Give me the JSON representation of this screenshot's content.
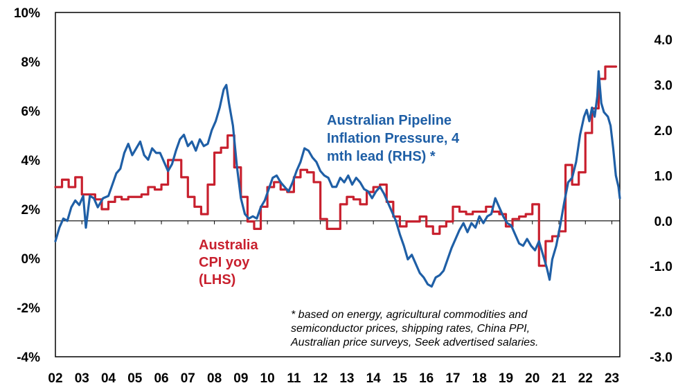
{
  "chart_data": {
    "type": "line",
    "title": "",
    "xlabel": "",
    "x_tick_labels": [
      "02",
      "03",
      "04",
      "05",
      "06",
      "07",
      "08",
      "09",
      "10",
      "11",
      "12",
      "13",
      "14",
      "15",
      "16",
      "17",
      "18",
      "19",
      "20",
      "21",
      "22",
      "23"
    ],
    "x_range": [
      2002.0,
      2023.3
    ],
    "left_axis": {
      "ylim": [
        -4,
        10
      ],
      "tick_values": [
        -4,
        -2,
        0,
        2,
        4,
        6,
        8,
        10
      ],
      "tick_labels": [
        "-4%",
        "-2%",
        "0%",
        "2%",
        "4%",
        "6%",
        "8%",
        "10%"
      ]
    },
    "right_axis": {
      "ylim": [
        -3.0,
        4.6
      ],
      "tick_values": [
        -3.0,
        -2.0,
        -1.0,
        0.0,
        1.0,
        2.0,
        3.0,
        4.0
      ],
      "tick_labels": [
        "-3.0",
        "-2.0",
        "-1.0",
        "0.0",
        "1.0",
        "2.0",
        "3.0",
        "4.0"
      ]
    },
    "series": [
      {
        "name": "Australia CPI yoy (LHS)",
        "axis": "left",
        "style": "step",
        "color": "#c8202e",
        "label_lines": [
          "Australia",
          "CPI yoy",
          "(LHS)"
        ],
        "points": [
          [
            2002.0,
            2.9
          ],
          [
            2002.25,
            3.2
          ],
          [
            2002.5,
            2.9
          ],
          [
            2002.75,
            3.3
          ],
          [
            2003.0,
            2.6
          ],
          [
            2003.25,
            2.6
          ],
          [
            2003.5,
            2.4
          ],
          [
            2003.75,
            2.0
          ],
          [
            2004.0,
            2.3
          ],
          [
            2004.25,
            2.5
          ],
          [
            2004.5,
            2.4
          ],
          [
            2004.75,
            2.5
          ],
          [
            2005.0,
            2.5
          ],
          [
            2005.25,
            2.6
          ],
          [
            2005.5,
            2.9
          ],
          [
            2005.75,
            2.8
          ],
          [
            2006.0,
            3.0
          ],
          [
            2006.25,
            4.0
          ],
          [
            2006.5,
            4.0
          ],
          [
            2006.75,
            3.3
          ],
          [
            2007.0,
            2.5
          ],
          [
            2007.25,
            2.1
          ],
          [
            2007.5,
            1.8
          ],
          [
            2007.75,
            3.0
          ],
          [
            2008.0,
            4.3
          ],
          [
            2008.25,
            4.5
          ],
          [
            2008.5,
            5.0
          ],
          [
            2008.75,
            3.7
          ],
          [
            2009.0,
            2.5
          ],
          [
            2009.25,
            1.5
          ],
          [
            2009.5,
            1.2
          ],
          [
            2009.75,
            2.1
          ],
          [
            2010.0,
            2.9
          ],
          [
            2010.25,
            3.1
          ],
          [
            2010.5,
            2.8
          ],
          [
            2010.75,
            2.7
          ],
          [
            2011.0,
            3.3
          ],
          [
            2011.25,
            3.6
          ],
          [
            2011.5,
            3.5
          ],
          [
            2011.75,
            3.1
          ],
          [
            2012.0,
            1.6
          ],
          [
            2012.25,
            1.2
          ],
          [
            2012.5,
            1.2
          ],
          [
            2012.75,
            2.2
          ],
          [
            2013.0,
            2.5
          ],
          [
            2013.25,
            2.4
          ],
          [
            2013.5,
            2.2
          ],
          [
            2013.75,
            2.7
          ],
          [
            2014.0,
            2.9
          ],
          [
            2014.25,
            3.0
          ],
          [
            2014.5,
            2.3
          ],
          [
            2014.75,
            1.7
          ],
          [
            2015.0,
            1.3
          ],
          [
            2015.25,
            1.5
          ],
          [
            2015.5,
            1.5
          ],
          [
            2015.75,
            1.7
          ],
          [
            2016.0,
            1.3
          ],
          [
            2016.25,
            1.0
          ],
          [
            2016.5,
            1.3
          ],
          [
            2016.75,
            1.5
          ],
          [
            2017.0,
            2.1
          ],
          [
            2017.25,
            1.9
          ],
          [
            2017.5,
            1.8
          ],
          [
            2017.75,
            1.9
          ],
          [
            2018.0,
            1.9
          ],
          [
            2018.25,
            2.1
          ],
          [
            2018.5,
            1.9
          ],
          [
            2018.75,
            1.8
          ],
          [
            2019.0,
            1.3
          ],
          [
            2019.25,
            1.6
          ],
          [
            2019.5,
            1.7
          ],
          [
            2019.75,
            1.8
          ],
          [
            2020.0,
            2.2
          ],
          [
            2020.25,
            -0.3
          ],
          [
            2020.5,
            0.7
          ],
          [
            2020.75,
            0.9
          ],
          [
            2021.0,
            1.1
          ],
          [
            2021.25,
            3.8
          ],
          [
            2021.5,
            3.0
          ],
          [
            2021.75,
            3.5
          ],
          [
            2022.0,
            5.1
          ],
          [
            2022.25,
            6.1
          ],
          [
            2022.5,
            7.3
          ],
          [
            2022.75,
            7.8
          ],
          [
            2023.0,
            7.8
          ]
        ]
      },
      {
        "name": "Australian Pipeline Inflation Pressure, 4 mth lead (RHS) *",
        "axis": "right",
        "style": "line",
        "color": "#1f5fa6",
        "label_lines": [
          "Australian Pipeline",
          "Inflation Pressure, 4",
          "mth lead (RHS) *"
        ],
        "points": [
          [
            2002.0,
            -0.45
          ],
          [
            2002.15,
            -0.15
          ],
          [
            2002.3,
            0.05
          ],
          [
            2002.45,
            0.0
          ],
          [
            2002.6,
            0.3
          ],
          [
            2002.75,
            0.45
          ],
          [
            2002.9,
            0.35
          ],
          [
            2003.05,
            0.55
          ],
          [
            2003.15,
            -0.15
          ],
          [
            2003.3,
            0.55
          ],
          [
            2003.45,
            0.5
          ],
          [
            2003.6,
            0.3
          ],
          [
            2003.8,
            0.5
          ],
          [
            2004.0,
            0.55
          ],
          [
            2004.15,
            0.8
          ],
          [
            2004.3,
            1.05
          ],
          [
            2004.45,
            1.15
          ],
          [
            2004.6,
            1.5
          ],
          [
            2004.75,
            1.7
          ],
          [
            2004.9,
            1.45
          ],
          [
            2005.05,
            1.6
          ],
          [
            2005.2,
            1.75
          ],
          [
            2005.35,
            1.45
          ],
          [
            2005.5,
            1.35
          ],
          [
            2005.65,
            1.6
          ],
          [
            2005.8,
            1.5
          ],
          [
            2005.95,
            1.5
          ],
          [
            2006.1,
            1.3
          ],
          [
            2006.25,
            1.1
          ],
          [
            2006.4,
            1.25
          ],
          [
            2006.55,
            1.55
          ],
          [
            2006.7,
            1.8
          ],
          [
            2006.85,
            1.9
          ],
          [
            2007.0,
            1.65
          ],
          [
            2007.15,
            1.75
          ],
          [
            2007.3,
            1.55
          ],
          [
            2007.45,
            1.8
          ],
          [
            2007.6,
            1.65
          ],
          [
            2007.75,
            1.7
          ],
          [
            2007.9,
            2.0
          ],
          [
            2008.05,
            2.2
          ],
          [
            2008.2,
            2.5
          ],
          [
            2008.35,
            2.9
          ],
          [
            2008.45,
            3.0
          ],
          [
            2008.55,
            2.6
          ],
          [
            2008.7,
            2.1
          ],
          [
            2008.85,
            1.2
          ],
          [
            2009.0,
            0.5
          ],
          [
            2009.15,
            0.15
          ],
          [
            2009.3,
            0.05
          ],
          [
            2009.45,
            0.1
          ],
          [
            2009.6,
            0.05
          ],
          [
            2009.75,
            0.3
          ],
          [
            2009.9,
            0.45
          ],
          [
            2010.05,
            0.7
          ],
          [
            2010.2,
            0.95
          ],
          [
            2010.35,
            1.0
          ],
          [
            2010.5,
            0.85
          ],
          [
            2010.65,
            0.75
          ],
          [
            2010.8,
            0.65
          ],
          [
            2010.95,
            0.85
          ],
          [
            2011.1,
            1.1
          ],
          [
            2011.25,
            1.3
          ],
          [
            2011.4,
            1.6
          ],
          [
            2011.55,
            1.55
          ],
          [
            2011.7,
            1.4
          ],
          [
            2011.85,
            1.3
          ],
          [
            2012.0,
            1.1
          ],
          [
            2012.15,
            1.0
          ],
          [
            2012.3,
            0.95
          ],
          [
            2012.45,
            0.75
          ],
          [
            2012.6,
            0.75
          ],
          [
            2012.75,
            0.95
          ],
          [
            2012.9,
            0.85
          ],
          [
            2013.05,
            1.0
          ],
          [
            2013.2,
            0.8
          ],
          [
            2013.35,
            0.95
          ],
          [
            2013.5,
            0.85
          ],
          [
            2013.65,
            0.7
          ],
          [
            2013.8,
            0.65
          ],
          [
            2013.95,
            0.5
          ],
          [
            2014.1,
            0.65
          ],
          [
            2014.25,
            0.75
          ],
          [
            2014.4,
            0.6
          ],
          [
            2014.55,
            0.4
          ],
          [
            2014.7,
            0.2
          ],
          [
            2014.85,
            0.0
          ],
          [
            2015.0,
            -0.3
          ],
          [
            2015.15,
            -0.55
          ],
          [
            2015.3,
            -0.85
          ],
          [
            2015.45,
            -0.75
          ],
          [
            2015.6,
            -0.95
          ],
          [
            2015.75,
            -1.15
          ],
          [
            2015.9,
            -1.25
          ],
          [
            2016.05,
            -1.4
          ],
          [
            2016.2,
            -1.45
          ],
          [
            2016.35,
            -1.25
          ],
          [
            2016.5,
            -1.2
          ],
          [
            2016.65,
            -1.1
          ],
          [
            2016.8,
            -0.85
          ],
          [
            2016.95,
            -0.6
          ],
          [
            2017.1,
            -0.4
          ],
          [
            2017.25,
            -0.2
          ],
          [
            2017.4,
            -0.05
          ],
          [
            2017.55,
            -0.25
          ],
          [
            2017.7,
            -0.05
          ],
          [
            2017.85,
            -0.15
          ],
          [
            2018.0,
            0.1
          ],
          [
            2018.15,
            -0.05
          ],
          [
            2018.3,
            0.1
          ],
          [
            2018.45,
            0.15
          ],
          [
            2018.6,
            0.5
          ],
          [
            2018.75,
            0.3
          ],
          [
            2018.9,
            0.1
          ],
          [
            2019.05,
            -0.05
          ],
          [
            2019.2,
            -0.1
          ],
          [
            2019.35,
            -0.3
          ],
          [
            2019.5,
            -0.5
          ],
          [
            2019.65,
            -0.55
          ],
          [
            2019.8,
            -0.4
          ],
          [
            2019.95,
            -0.55
          ],
          [
            2020.1,
            -0.65
          ],
          [
            2020.25,
            -0.45
          ],
          [
            2020.4,
            -0.75
          ],
          [
            2020.55,
            -1.05
          ],
          [
            2020.65,
            -1.3
          ],
          [
            2020.75,
            -0.85
          ],
          [
            2020.9,
            -0.55
          ],
          [
            2021.05,
            -0.1
          ],
          [
            2021.2,
            0.4
          ],
          [
            2021.35,
            0.85
          ],
          [
            2021.5,
            0.95
          ],
          [
            2021.65,
            1.3
          ],
          [
            2021.8,
            1.9
          ],
          [
            2021.95,
            2.3
          ],
          [
            2022.05,
            2.45
          ],
          [
            2022.15,
            2.2
          ],
          [
            2022.25,
            2.5
          ],
          [
            2022.35,
            2.3
          ],
          [
            2022.45,
            2.75
          ],
          [
            2022.5,
            3.3
          ],
          [
            2022.6,
            2.6
          ],
          [
            2022.7,
            2.4
          ],
          [
            2022.85,
            2.3
          ],
          [
            2022.95,
            2.1
          ],
          [
            2023.05,
            1.6
          ],
          [
            2023.15,
            1.0
          ],
          [
            2023.25,
            0.75
          ],
          [
            2023.3,
            0.5
          ]
        ]
      }
    ],
    "annotation_lines": [
      "* based on energy, agricultural commodities and",
      "semiconductor prices, shipping rates, China PPI,",
      "Australian price surveys, Seek advertised salaries."
    ],
    "grid": false
  }
}
